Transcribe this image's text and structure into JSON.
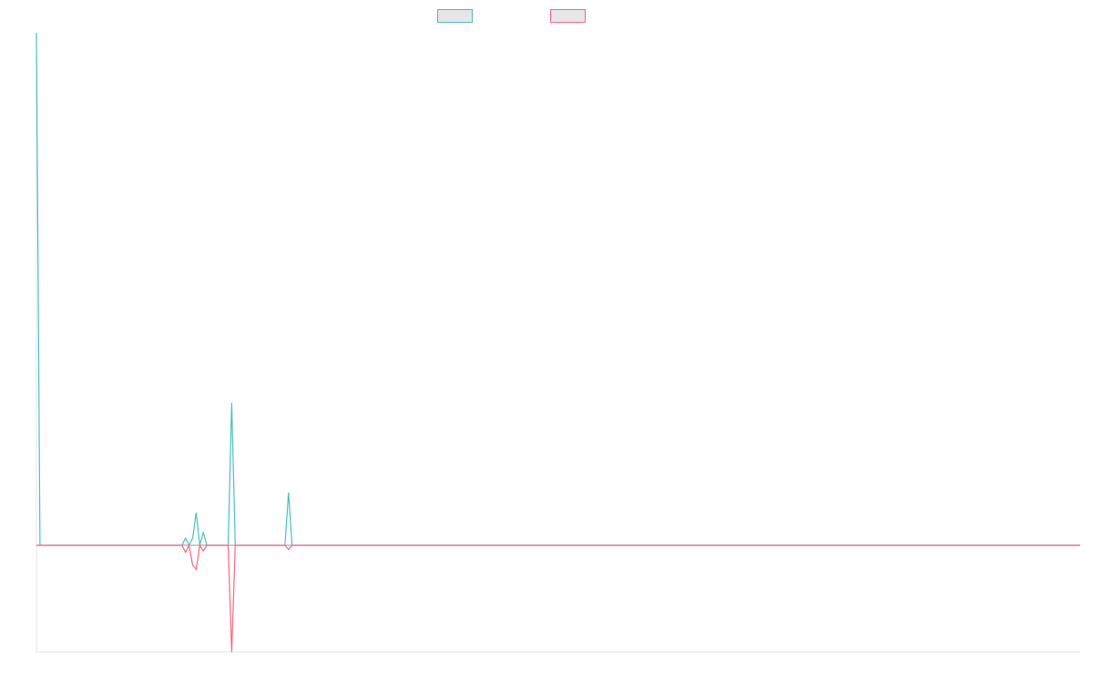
{
  "chart_data": {
    "type": "line",
    "title": "",
    "xlabel": "",
    "ylabel": "",
    "ylim": [
      -0.75,
      3.6
    ],
    "grid": false,
    "legend_position": "top-center",
    "series": [
      {
        "color": "#4bc0c0",
        "values": [
          3.6,
          0,
          0,
          0,
          0,
          0,
          0,
          0,
          0,
          0,
          0,
          0,
          0,
          0,
          0,
          0,
          0,
          0,
          0,
          0,
          0,
          0,
          0,
          0,
          0,
          0,
          0,
          0,
          0,
          0,
          0,
          0,
          0,
          0,
          0,
          0,
          0,
          0,
          0,
          0,
          0,
          0,
          0.05,
          0,
          0.05,
          0.23,
          0,
          0.09,
          0,
          0,
          0,
          0,
          0,
          0,
          0,
          1.0,
          0,
          0,
          0,
          0,
          0,
          0,
          0,
          0,
          0,
          0,
          0,
          0,
          0,
          0,
          0,
          0.37,
          0,
          0,
          0,
          0,
          0,
          0,
          0,
          0,
          0,
          0,
          0,
          0,
          0,
          0,
          0,
          0,
          0,
          0,
          0,
          0,
          0,
          0,
          0,
          0,
          0,
          0,
          0,
          0,
          0,
          0,
          0,
          0,
          0,
          0,
          0,
          0,
          0,
          0,
          0,
          0,
          0,
          0,
          0,
          0,
          0,
          0,
          0,
          0,
          0,
          0,
          0,
          0,
          0,
          0,
          0,
          0,
          0,
          0,
          0,
          0,
          0,
          0,
          0,
          0,
          0,
          0,
          0,
          0,
          0,
          0,
          0,
          0,
          0,
          0,
          0,
          0,
          0,
          0,
          0,
          0,
          0,
          0,
          0,
          0,
          0,
          0,
          0,
          0,
          0,
          0,
          0,
          0,
          0,
          0,
          0,
          0,
          0,
          0,
          0,
          0,
          0,
          0,
          0,
          0,
          0,
          0,
          0,
          0,
          0,
          0,
          0,
          0,
          0,
          0,
          0,
          0,
          0,
          0,
          0,
          0,
          0,
          0,
          0,
          0,
          0,
          0,
          0,
          0,
          0,
          0,
          0,
          0,
          0,
          0,
          0,
          0,
          0,
          0,
          0,
          0,
          0,
          0,
          0,
          0,
          0,
          0,
          0,
          0,
          0,
          0,
          0,
          0,
          0,
          0,
          0,
          0,
          0,
          0,
          0,
          0,
          0,
          0,
          0,
          0,
          0,
          0,
          0,
          0,
          0,
          0,
          0,
          0,
          0,
          0,
          0,
          0,
          0,
          0,
          0,
          0,
          0,
          0,
          0,
          0,
          0,
          0,
          0,
          0,
          0,
          0,
          0,
          0,
          0,
          0,
          0,
          0,
          0,
          0,
          0,
          0,
          0,
          0,
          0,
          0,
          0,
          0,
          0,
          0,
          0,
          0,
          0,
          0,
          0,
          0,
          0,
          0,
          0,
          0,
          0,
          0,
          0,
          0,
          0
        ]
      },
      {
        "color": "#ff6384",
        "values": [
          0,
          0,
          0,
          0,
          0,
          0,
          0,
          0,
          0,
          0,
          0,
          0,
          0,
          0,
          0,
          0,
          0,
          0,
          0,
          0,
          0,
          0,
          0,
          0,
          0,
          0,
          0,
          0,
          0,
          0,
          0,
          0,
          0,
          0,
          0,
          0,
          0,
          0,
          0,
          0,
          0,
          0,
          -0.05,
          0,
          -0.14,
          -0.17,
          0,
          -0.04,
          0,
          0,
          0,
          0,
          0,
          0,
          0,
          -0.75,
          0,
          0,
          0,
          0,
          0,
          0,
          0,
          0,
          0,
          0,
          0,
          0,
          0,
          0,
          0,
          -0.03,
          0,
          0,
          0,
          0,
          0,
          0,
          0,
          0,
          0,
          0,
          0,
          0,
          0,
          0,
          0,
          0,
          0,
          0,
          0,
          0,
          0,
          0,
          0,
          0,
          0,
          0,
          0,
          0,
          0,
          0,
          0,
          0,
          0,
          0,
          0,
          0,
          0,
          0,
          0,
          0,
          0,
          0,
          0,
          0,
          0,
          0,
          0,
          0,
          0,
          0,
          0,
          0,
          0,
          0,
          0,
          0,
          0,
          0,
          0,
          0,
          0,
          0,
          0,
          0,
          0,
          0,
          0,
          0,
          0,
          0,
          0,
          0,
          0,
          0,
          0,
          0,
          0,
          0,
          0,
          0,
          0,
          0,
          0,
          0,
          0,
          0,
          0,
          0,
          0,
          0,
          0,
          0,
          0,
          0,
          0,
          0,
          0,
          0,
          0,
          0,
          0,
          0,
          0,
          0,
          0,
          0,
          0,
          0,
          0,
          0,
          0,
          0,
          0,
          0,
          0,
          0,
          0,
          0,
          0,
          0,
          0,
          0,
          0,
          0,
          0,
          0,
          0,
          0,
          0,
          0,
          0,
          0,
          0,
          0,
          0,
          0,
          0,
          0,
          0,
          0,
          0,
          0,
          0,
          0,
          0,
          0,
          0,
          0,
          0,
          0,
          0,
          0,
          0,
          0,
          0,
          0,
          0,
          0,
          0,
          0,
          0,
          0,
          0,
          0,
          0,
          0,
          0,
          0,
          0,
          0,
          0,
          0,
          0,
          0,
          0,
          0,
          0,
          0,
          0,
          0,
          0,
          0,
          0,
          0,
          0,
          0,
          0,
          0,
          0,
          0,
          0,
          0,
          0,
          0,
          0,
          0,
          0,
          0,
          0,
          0,
          0,
          0,
          0,
          0,
          0,
          0,
          0,
          0,
          0,
          0,
          0,
          0,
          0,
          0,
          0,
          0,
          0,
          0,
          0,
          0,
          0,
          0,
          0
        ]
      }
    ]
  }
}
